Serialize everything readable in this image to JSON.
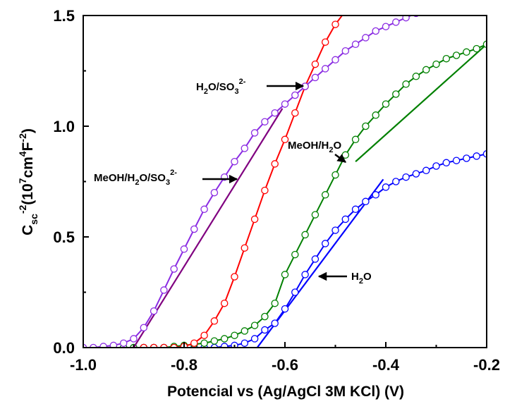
{
  "chart_data": {
    "type": "scatter",
    "xlim": [
      -1.0,
      -0.2
    ],
    "ylim": [
      0.0,
      1.5
    ],
    "xticks": [
      -1.0,
      -0.8,
      -0.6,
      -0.4,
      -0.2
    ],
    "xtick_labels": [
      "-1.0",
      "-0.8",
      "-0.6",
      "-0.4",
      "-0.2"
    ],
    "yticks": [
      0.0,
      0.5,
      1.0,
      1.5
    ],
    "ytick_labels": [
      "0.0",
      "0.5",
      "1.0",
      "1.5"
    ],
    "xlabel": "Potencial vs (Ag/AgCl 3M KCl) (V)",
    "ylabel": "C_sc^-2(10^7cm^4F^-2)",
    "grid": false,
    "series": [
      {
        "name": "H2O",
        "color": "#0000ff",
        "x": [
          -0.94,
          -0.92,
          -0.9,
          -0.88,
          -0.86,
          -0.84,
          -0.82,
          -0.8,
          -0.78,
          -0.76,
          -0.74,
          -0.72,
          -0.7,
          -0.68,
          -0.66,
          -0.64,
          -0.62,
          -0.6,
          -0.58,
          -0.56,
          -0.54,
          -0.52,
          -0.5,
          -0.48,
          -0.46,
          -0.44,
          -0.42,
          -0.4,
          -0.38,
          -0.36,
          -0.34,
          -0.32,
          -0.3,
          -0.28,
          -0.26,
          -0.24,
          -0.22,
          -0.2
        ],
        "y": [
          0.0,
          0.0,
          0.0,
          0.0,
          0.0,
          0.0,
          0.0,
          0.0,
          0.0,
          0.0,
          0.0,
          0.005,
          0.01,
          0.02,
          0.04,
          0.08,
          0.11,
          0.175,
          0.25,
          0.33,
          0.4,
          0.47,
          0.53,
          0.58,
          0.625,
          0.66,
          0.69,
          0.725,
          0.75,
          0.77,
          0.785,
          0.8,
          0.82,
          0.835,
          0.845,
          0.855,
          0.865,
          0.875
        ],
        "fit": {
          "x": [
            -0.655,
            -0.405
          ],
          "y": [
            0.0,
            0.76
          ]
        },
        "label": "H",
        "label_sub": "2",
        "label_end": "O"
      },
      {
        "name": "MeOH/H2O",
        "color": "#008000",
        "x": [
          -0.94,
          -0.92,
          -0.9,
          -0.88,
          -0.86,
          -0.84,
          -0.82,
          -0.8,
          -0.78,
          -0.76,
          -0.74,
          -0.72,
          -0.7,
          -0.68,
          -0.66,
          -0.64,
          -0.62,
          -0.6,
          -0.58,
          -0.56,
          -0.54,
          -0.52,
          -0.5,
          -0.48,
          -0.46,
          -0.44,
          -0.42,
          -0.4,
          -0.38,
          -0.36,
          -0.34,
          -0.32,
          -0.3,
          -0.28,
          -0.26,
          -0.24,
          -0.22,
          -0.2
        ],
        "y": [
          0.0,
          0.0,
          0.0,
          0.0,
          0.0,
          0.0,
          0.005,
          0.01,
          0.015,
          0.02,
          0.03,
          0.04,
          0.055,
          0.075,
          0.1,
          0.14,
          0.2,
          0.33,
          0.42,
          0.51,
          0.6,
          0.69,
          0.78,
          0.87,
          0.94,
          1.0,
          1.05,
          1.1,
          1.145,
          1.19,
          1.225,
          1.255,
          1.28,
          1.305,
          1.32,
          1.335,
          1.35,
          1.37
        ],
        "fit": {
          "x": [
            -0.46,
            -0.2
          ],
          "y": [
            0.84,
            1.37
          ]
        },
        "label": "MeOH/H",
        "label_sub": "2",
        "label_end": "O"
      },
      {
        "name": "H2O/SO3 2-",
        "color": "#ff0000",
        "x": [
          -0.88,
          -0.86,
          -0.84,
          -0.82,
          -0.8,
          -0.78,
          -0.76,
          -0.74,
          -0.72,
          -0.7,
          -0.68,
          -0.66,
          -0.64,
          -0.62,
          -0.6,
          -0.58,
          -0.56,
          -0.54,
          -0.52,
          -0.5,
          -0.48
        ],
        "y": [
          0.0,
          0.0,
          0.0,
          0.0,
          0.005,
          0.02,
          0.055,
          0.12,
          0.2,
          0.32,
          0.45,
          0.58,
          0.71,
          0.83,
          0.94,
          1.06,
          1.18,
          1.28,
          1.38,
          1.46,
          1.52
        ],
        "label": "H",
        "label_sub": "2",
        "label_mid": "O/SO",
        "label_sub2": "3",
        "label_sup": "2-"
      },
      {
        "name": "MeOH/H2O/SO3 2-",
        "color": "#8a2be2",
        "x": [
          -1.0,
          -0.98,
          -0.96,
          -0.94,
          -0.92,
          -0.9,
          -0.88,
          -0.86,
          -0.84,
          -0.82,
          -0.8,
          -0.78,
          -0.76,
          -0.74,
          -0.72,
          -0.7,
          -0.68,
          -0.66,
          -0.64,
          -0.62,
          -0.6,
          -0.58,
          -0.56,
          -0.54,
          -0.52,
          -0.5,
          -0.48,
          -0.46,
          -0.44,
          -0.42,
          -0.4,
          -0.38,
          -0.36,
          -0.34
        ],
        "y": [
          0.0,
          0.0,
          0.005,
          0.01,
          0.02,
          0.04,
          0.09,
          0.165,
          0.26,
          0.355,
          0.445,
          0.535,
          0.625,
          0.7,
          0.77,
          0.84,
          0.9,
          0.97,
          1.02,
          1.06,
          1.1,
          1.14,
          1.18,
          1.22,
          1.26,
          1.3,
          1.34,
          1.37,
          1.4,
          1.43,
          1.45,
          1.47,
          1.49,
          1.51
        ],
        "fit": {
          "x": [
            -0.9,
            -0.605
          ],
          "y": [
            0.0,
            1.08
          ]
        },
        "fit_color": "#800080",
        "label": "MeOH/H",
        "label_sub": "2",
        "label_mid": "O/SO",
        "label_sub2": "3",
        "label_sup": "2-"
      }
    ]
  }
}
